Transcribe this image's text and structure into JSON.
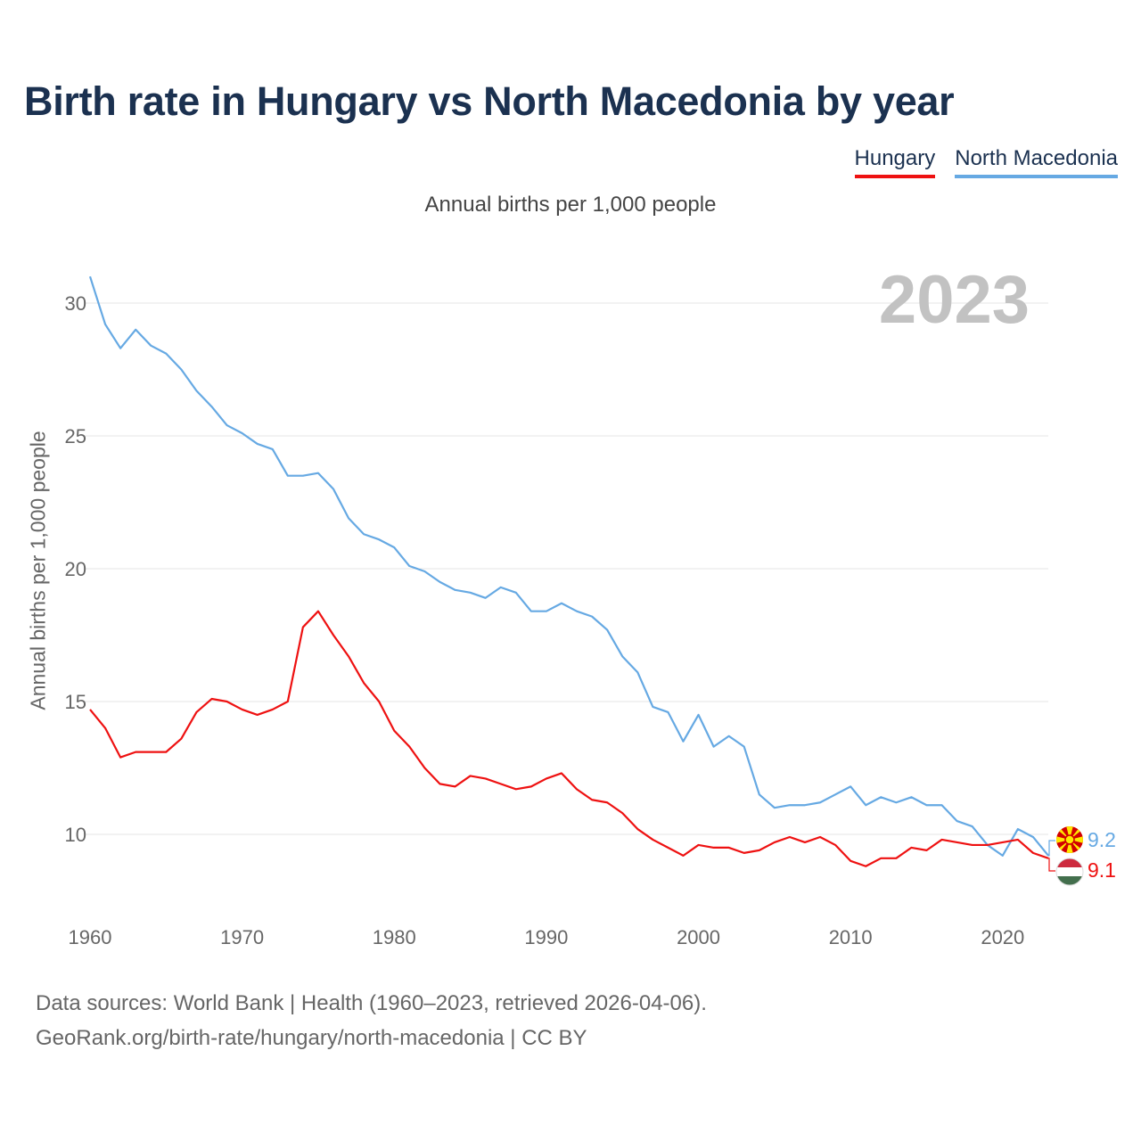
{
  "title": "Birth rate in Hungary vs North Macedonia by year",
  "subtitle": "Annual births per 1,000 people",
  "ylabel": "Annual births per 1,000 people",
  "year_watermark": "2023",
  "footer": {
    "line1": "Data sources: World Bank | Health (1960–2023, retrieved 2026-04-06).",
    "line2": "GeoRank.org/birth-rate/hungary/north-macedonia | CC BY"
  },
  "colors": {
    "hungary": "#ee1111",
    "north_macedonia": "#66a9e3"
  },
  "chart_data": {
    "type": "line",
    "title": "Birth rate in Hungary vs North Macedonia by year",
    "xlabel": "",
    "ylabel": "Annual births per 1,000 people",
    "xlim": [
      1960,
      2023
    ],
    "ylim": [
      8,
      31.5
    ],
    "x_ticks": [
      1960,
      1970,
      1980,
      1990,
      2000,
      2010,
      2020
    ],
    "y_ticks": [
      10,
      15,
      20,
      25,
      30
    ],
    "grid": true,
    "legend": "top-right",
    "x": [
      1960,
      1961,
      1962,
      1963,
      1964,
      1965,
      1966,
      1967,
      1968,
      1969,
      1970,
      1971,
      1972,
      1973,
      1974,
      1975,
      1976,
      1977,
      1978,
      1979,
      1980,
      1981,
      1982,
      1983,
      1984,
      1985,
      1986,
      1987,
      1988,
      1989,
      1990,
      1991,
      1992,
      1993,
      1994,
      1995,
      1996,
      1997,
      1998,
      1999,
      2000,
      2001,
      2002,
      2003,
      2004,
      2005,
      2006,
      2007,
      2008,
      2009,
      2010,
      2011,
      2012,
      2013,
      2014,
      2015,
      2016,
      2017,
      2018,
      2019,
      2020,
      2021,
      2022,
      2023
    ],
    "series": [
      {
        "name": "Hungary",
        "color": "#ee1111",
        "end_label": "9.1",
        "values": [
          14.7,
          14.0,
          12.9,
          13.1,
          13.1,
          13.1,
          13.6,
          14.6,
          15.1,
          15.0,
          14.7,
          14.5,
          14.7,
          15.0,
          17.8,
          18.4,
          17.5,
          16.7,
          15.7,
          15.0,
          13.9,
          13.3,
          12.5,
          11.9,
          11.8,
          12.2,
          12.1,
          11.9,
          11.7,
          11.8,
          12.1,
          12.3,
          11.7,
          11.3,
          11.2,
          10.8,
          10.2,
          9.8,
          9.5,
          9.2,
          9.6,
          9.5,
          9.5,
          9.3,
          9.4,
          9.7,
          9.9,
          9.7,
          9.9,
          9.6,
          9.0,
          8.8,
          9.1,
          9.1,
          9.5,
          9.4,
          9.8,
          9.7,
          9.6,
          9.6,
          9.7,
          9.8,
          9.3,
          9.1
        ]
      },
      {
        "name": "North Macedonia",
        "color": "#66a9e3",
        "end_label": "9.2",
        "values": [
          31.0,
          29.2,
          28.3,
          29.0,
          28.4,
          28.1,
          27.5,
          26.7,
          26.1,
          25.4,
          25.1,
          24.7,
          24.5,
          23.5,
          23.5,
          23.6,
          23.0,
          21.9,
          21.3,
          21.1,
          20.8,
          20.1,
          19.9,
          19.5,
          19.2,
          19.1,
          18.9,
          19.3,
          19.1,
          18.4,
          18.4,
          18.7,
          18.4,
          18.2,
          17.7,
          16.7,
          16.1,
          14.8,
          14.6,
          13.5,
          14.5,
          13.3,
          13.7,
          13.3,
          11.5,
          11.0,
          11.1,
          11.1,
          11.2,
          11.5,
          11.8,
          11.1,
          11.4,
          11.2,
          11.4,
          11.1,
          11.1,
          10.5,
          10.3,
          9.6,
          9.2,
          10.2,
          9.9,
          9.2
        ]
      }
    ]
  }
}
